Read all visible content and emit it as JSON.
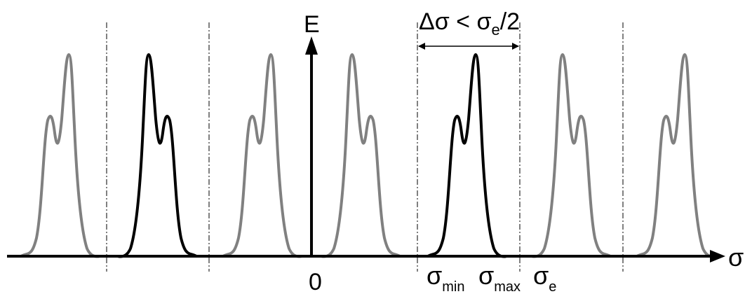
{
  "labels": {
    "e_axis": "E",
    "sigma_axis": "σ",
    "origin": "0",
    "interval_delta": "Δσ < σ",
    "interval_sub": "e",
    "interval_tail": "/2",
    "sigma_min_main": "σ",
    "sigma_min_sub": "min",
    "sigma_max_main": "σ",
    "sigma_max_sub": "max",
    "sigma_e_main": "σ",
    "sigma_e_sub": "e"
  },
  "colors": {
    "axis": "#000000",
    "primary_peak": "#000000",
    "replica_peak": "#808080",
    "separator": "#000000"
  }
}
